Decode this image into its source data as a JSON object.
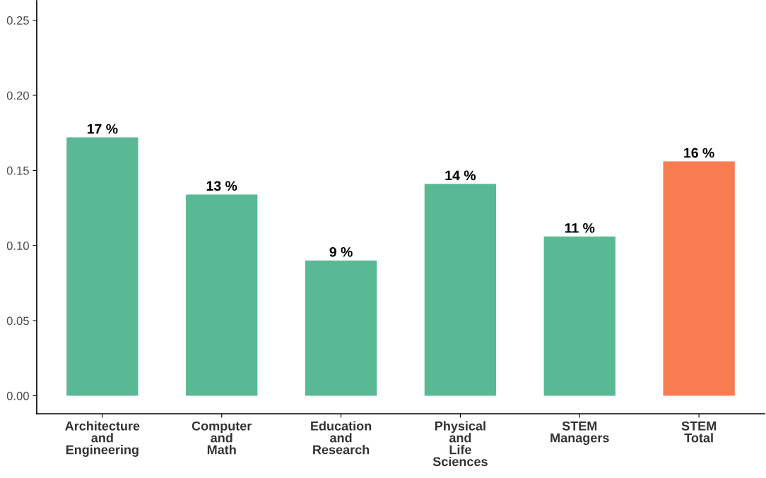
{
  "chart_data": {
    "type": "bar",
    "categories": [
      "Architecture\nand\nEngineering",
      "Computer\nand\nMath",
      "Education\nand\nResearch",
      "Physical\nand\nLife\nSciences",
      "STEM\nManagers",
      "STEM\nTotal"
    ],
    "values": [
      0.172,
      0.134,
      0.09,
      0.141,
      0.106,
      0.156
    ],
    "colors": [
      "#59b995",
      "#59b995",
      "#59b995",
      "#59b995",
      "#59b995",
      "#f87b52"
    ],
    "value_labels": [
      "17 %",
      "13 %",
      "9 %",
      "14 %",
      "11 %",
      "16 %"
    ],
    "ylim": [
      -0.012,
      0.263
    ],
    "yticks": [
      {
        "value": 0,
        "label": "0.00"
      },
      {
        "value": 0.05,
        "label": "0.05"
      },
      {
        "value": 0.1,
        "label": "0.10"
      },
      {
        "value": 0.15,
        "label": "0.15"
      },
      {
        "value": 0.2,
        "label": "0.20"
      },
      {
        "value": 0.25,
        "label": "0.25"
      }
    ],
    "grid": false
  }
}
